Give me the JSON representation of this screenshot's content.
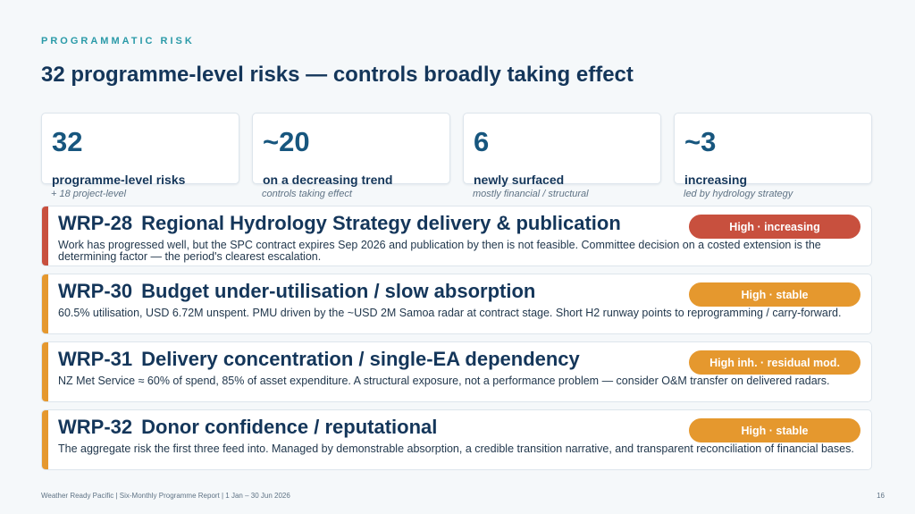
{
  "header": {
    "eyebrow": "PROGRAMMATIC RISK",
    "title": "32 programme-level risks — controls broadly taking effect"
  },
  "stats": [
    {
      "value": "32",
      "label": "programme-level risks",
      "sub": "+ 18 project-level"
    },
    {
      "value": "~20",
      "label": "on a decreasing trend",
      "sub": "controls taking effect"
    },
    {
      "value": "6",
      "label": "newly surfaced",
      "sub": "mostly financial / structural"
    },
    {
      "value": "~3",
      "label": "increasing",
      "sub": "led by hydrology strategy"
    }
  ],
  "risks": [
    {
      "id": "WRP-28",
      "title": "Regional Hydrology Strategy delivery & publication",
      "badge": "High · increasing",
      "color": "#c8503e",
      "description": "Work has progressed well, but the SPC contract expires Sep 2026 and publication by then is not feasible. Committee decision on a costed extension is the determining factor — the period's clearest escalation."
    },
    {
      "id": "WRP-30",
      "title": "Budget under-utilisation / slow absorption",
      "badge": "High · stable",
      "color": "#e5982e",
      "description": "60.5% utilisation, USD 6.72M unspent. PMU driven by the ~USD 2M Samoa radar at contract stage. Short H2 runway points to reprogramming / carry-forward."
    },
    {
      "id": "WRP-31",
      "title": "Delivery concentration / single-EA dependency",
      "badge": "High inh. · residual mod.",
      "color": "#e5982e",
      "description": "NZ Met Service ≈ 60% of spend, 85% of asset expenditure. A structural exposure, not a performance problem — consider O&M transfer on delivered radars."
    },
    {
      "id": "WRP-32",
      "title": "Donor confidence / reputational",
      "badge": "High · stable",
      "color": "#e5982e",
      "description": "The aggregate risk the first three feed into. Managed by demonstrable absorption, a credible transition narrative, and transparent reconciliation of financial bases."
    }
  ],
  "footer": {
    "text": "Weather Ready Pacific  |  Six-Monthly Programme Report  |  1 Jan – 30 Jun 2026",
    "page": "16"
  }
}
